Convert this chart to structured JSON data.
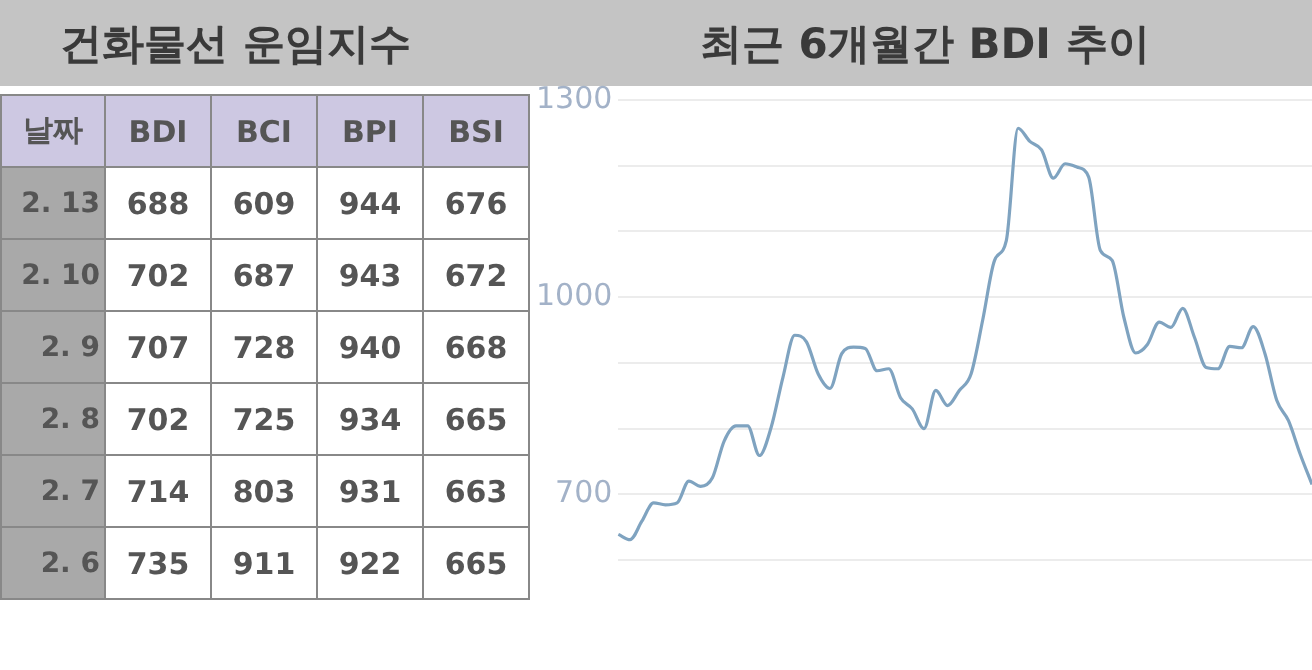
{
  "chart_data": [
    {
      "type": "heatmap",
      "title": "건화물선 운임지수",
      "ylabel": "날짜",
      "categories": [
        "BDI",
        "BCI",
        "BPI",
        "BSI"
      ],
      "y_categories": [
        "2. 13",
        "2. 10",
        "2. 9",
        "2. 8",
        "2. 7",
        "2. 6"
      ],
      "cells": [
        [
          688,
          609,
          944,
          676
        ],
        [
          702,
          687,
          943,
          672
        ],
        [
          707,
          728,
          940,
          668
        ],
        [
          702,
          725,
          934,
          665
        ],
        [
          714,
          803,
          931,
          663
        ],
        [
          735,
          911,
          922,
          665
        ]
      ],
      "color": "#ffffff",
      "data_labels": true
    },
    {
      "type": "line",
      "title": "최근 6개월간 BDI 추이",
      "categories": [
        null,
        null,
        null,
        null,
        null,
        null,
        null,
        null,
        null,
        null,
        null,
        null,
        null,
        null,
        null,
        null,
        null,
        null,
        null,
        null,
        null,
        null,
        null,
        null,
        null,
        null,
        null,
        null,
        null,
        null,
        null,
        null,
        null,
        null,
        null,
        null,
        null,
        null,
        null,
        null,
        null,
        null,
        null,
        null,
        null,
        null,
        null,
        null,
        null,
        null,
        null,
        null,
        null,
        null,
        null,
        null,
        null,
        null,
        null,
        null
      ],
      "series": [
        {
          "color": "#7fa3c0",
          "values": [
            639,
            631,
            659,
            687,
            684,
            687,
            720,
            712,
            725,
            781,
            804,
            804,
            759,
            802,
            878,
            942,
            932,
            883,
            861,
            914,
            924,
            922,
            888,
            891,
            847,
            830,
            800,
            858,
            835,
            858,
            883,
            966,
            1056,
            1086,
            1257,
            1237,
            1224,
            1181,
            1203,
            1198,
            1183,
            1071,
            1056,
            969,
            915,
            928,
            962,
            954,
            983,
            939,
            893,
            891,
            925,
            923,
            955,
            914,
            843,
            812,
            761,
            715
          ]
        }
      ],
      "ylim": [
        600,
        1300
      ],
      "yticks": [
        {
          "value": 600,
          "label": null
        },
        700,
        {
          "value": 800,
          "label": null
        },
        {
          "value": 900,
          "label": null
        },
        1000,
        {
          "value": 1100,
          "label": null
        },
        {
          "value": 1200,
          "label": null
        },
        1300
      ],
      "grid": "y",
      "tick_labels": "y",
      "marker": "none",
      "line_style": "solid"
    }
  ]
}
